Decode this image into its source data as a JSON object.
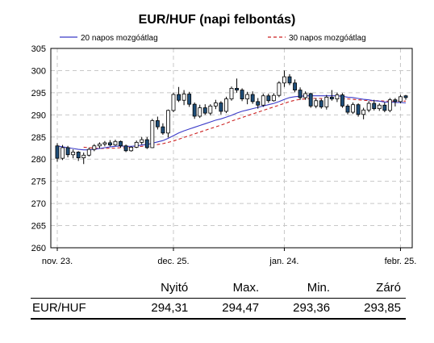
{
  "chart_data": {
    "type": "candlestick",
    "title": "EUR/HUF (napi felbontás)",
    "ylim": [
      260,
      305
    ],
    "yticks": [
      260,
      265,
      270,
      275,
      280,
      285,
      290,
      295,
      300,
      305
    ],
    "xticks": [
      "nov. 23.",
      "dec. 25.",
      "jan. 24.",
      "febr. 25."
    ],
    "xtick_positions": [
      0,
      22,
      43,
      65
    ],
    "grid": true,
    "legend_placement": "top",
    "legend": [
      {
        "name": "20 napos mozgóátlag",
        "color": "#3a3ac8",
        "style": "solid"
      },
      {
        "name": "30 napos mozgóátlag",
        "color": "#cc2222",
        "style": "dashed"
      }
    ],
    "candles": [
      [
        283.0,
        283.6,
        279.4,
        280.2
      ],
      [
        280.2,
        283.2,
        279.8,
        282.6
      ],
      [
        282.6,
        283.0,
        280.4,
        281.0
      ],
      [
        281.0,
        282.2,
        280.2,
        281.6
      ],
      [
        281.6,
        281.8,
        279.6,
        280.3
      ],
      [
        280.3,
        281.5,
        278.9,
        280.9
      ],
      [
        280.9,
        282.6,
        280.6,
        282.2
      ],
      [
        282.2,
        283.4,
        281.8,
        283.0
      ],
      [
        283.0,
        283.8,
        282.4,
        283.4
      ],
      [
        283.4,
        284.1,
        282.9,
        283.7
      ],
      [
        283.7,
        284.3,
        282.9,
        283.2
      ],
      [
        283.2,
        284.4,
        283.0,
        284.0
      ],
      [
        284.0,
        284.2,
        282.6,
        283.0
      ],
      [
        283.0,
        283.3,
        281.6,
        281.9
      ],
      [
        281.9,
        282.9,
        281.7,
        282.7
      ],
      [
        282.7,
        284.2,
        282.5,
        283.8
      ],
      [
        283.8,
        285.0,
        283.3,
        284.4
      ],
      [
        284.4,
        285.0,
        282.3,
        282.6
      ],
      [
        282.6,
        289.1,
        282.5,
        288.7
      ],
      [
        288.7,
        289.6,
        286.7,
        287.3
      ],
      [
        287.3,
        288.1,
        285.5,
        285.9
      ],
      [
        285.9,
        291.2,
        284.9,
        291.0
      ],
      [
        291.0,
        295.0,
        290.6,
        294.6
      ],
      [
        294.6,
        296.3,
        292.9,
        293.3
      ],
      [
        293.3,
        295.6,
        292.2,
        294.7
      ],
      [
        294.7,
        295.2,
        291.8,
        292.4
      ],
      [
        292.4,
        292.8,
        289.1,
        289.7
      ],
      [
        289.7,
        292.3,
        289.3,
        291.6
      ],
      [
        291.6,
        292.4,
        290.0,
        290.4
      ],
      [
        290.4,
        292.4,
        289.9,
        292.0
      ],
      [
        292.0,
        293.4,
        291.3,
        292.7
      ],
      [
        292.7,
        293.1,
        290.1,
        290.8
      ],
      [
        290.8,
        294.1,
        290.4,
        293.6
      ],
      [
        293.6,
        296.4,
        293.2,
        296.0
      ],
      [
        296.0,
        298.2,
        295.0,
        295.6
      ],
      [
        295.6,
        296.0,
        293.1,
        293.6
      ],
      [
        293.6,
        295.2,
        292.4,
        294.6
      ],
      [
        294.6,
        295.3,
        292.5,
        293.0
      ],
      [
        293.0,
        293.8,
        291.4,
        292.2
      ],
      [
        292.2,
        294.8,
        291.8,
        294.3
      ],
      [
        294.3,
        294.8,
        292.7,
        293.2
      ],
      [
        293.2,
        294.9,
        293.0,
        294.4
      ],
      [
        294.4,
        297.6,
        294.0,
        297.2
      ],
      [
        297.2,
        300.0,
        296.3,
        298.6
      ],
      [
        298.6,
        299.2,
        296.7,
        297.2
      ],
      [
        297.2,
        298.0,
        295.1,
        295.6
      ],
      [
        295.6,
        296.2,
        293.4,
        293.9
      ],
      [
        293.9,
        295.3,
        293.4,
        294.8
      ],
      [
        294.8,
        295.0,
        291.6,
        292.0
      ],
      [
        292.0,
        293.7,
        291.5,
        293.2
      ],
      [
        293.2,
        293.6,
        291.4,
        291.8
      ],
      [
        291.8,
        294.5,
        291.2,
        294.0
      ],
      [
        294.0,
        295.6,
        293.2,
        293.6
      ],
      [
        293.6,
        295.0,
        292.9,
        294.5
      ],
      [
        294.5,
        294.9,
        291.6,
        292.0
      ],
      [
        292.0,
        292.4,
        290.1,
        290.6
      ],
      [
        290.6,
        292.8,
        290.2,
        292.3
      ],
      [
        292.3,
        292.6,
        289.6,
        290.1
      ],
      [
        290.1,
        291.6,
        289.0,
        291.1
      ],
      [
        291.1,
        293.1,
        290.6,
        292.6
      ],
      [
        292.6,
        293.4,
        291.0,
        291.4
      ],
      [
        291.4,
        292.6,
        290.9,
        292.2
      ],
      [
        292.2,
        292.8,
        290.6,
        291.0
      ],
      [
        291.0,
        293.8,
        290.6,
        293.4
      ],
      [
        293.4,
        293.8,
        291.9,
        293.0
      ],
      [
        293.0,
        294.5,
        292.6,
        294.1
      ],
      [
        294.3,
        294.5,
        293.4,
        293.9
      ]
    ],
    "ma20": [
      283.0,
      282.8,
      282.6,
      282.4,
      282.2,
      282.1,
      282.1,
      282.2,
      282.4,
      282.6,
      282.8,
      282.9,
      283.0,
      282.9,
      282.9,
      283.0,
      283.2,
      283.3,
      283.6,
      283.9,
      284.2,
      284.7,
      285.3,
      285.9,
      286.4,
      286.8,
      287.2,
      287.6,
      288.0,
      288.4,
      288.8,
      289.1,
      289.5,
      289.9,
      290.4,
      290.8,
      291.1,
      291.4,
      291.7,
      292.0,
      292.3,
      292.6,
      293.0,
      293.5,
      293.9,
      294.1,
      294.2,
      294.3,
      294.3,
      294.3,
      294.3,
      294.3,
      294.3,
      294.3,
      294.2,
      294.0,
      293.9,
      293.7,
      293.5,
      293.4,
      293.2,
      293.1,
      292.9,
      292.9,
      292.8,
      292.8,
      292.7
    ],
    "ma30": [
      null,
      null,
      null,
      null,
      null,
      282.7,
      282.6,
      282.5,
      282.4,
      282.4,
      282.5,
      282.5,
      282.6,
      282.6,
      282.7,
      282.8,
      282.9,
      283.0,
      283.2,
      283.3,
      283.5,
      283.8,
      284.1,
      284.5,
      284.9,
      285.3,
      285.7,
      286.1,
      286.5,
      286.9,
      287.3,
      287.7,
      288.1,
      288.6,
      289.0,
      289.4,
      289.8,
      290.2,
      290.6,
      291.0,
      291.4,
      291.8,
      292.2,
      292.6,
      293.0,
      293.3,
      293.5,
      293.6,
      293.7,
      293.7,
      293.7,
      293.7,
      293.7,
      293.7,
      293.7,
      293.6,
      293.5,
      293.4,
      293.3,
      293.2,
      293.2,
      293.2,
      293.1,
      293.1,
      293.1,
      293.1,
      293.1
    ]
  },
  "table": {
    "headers": [
      "Nyitó",
      "Max.",
      "Min.",
      "Záró"
    ],
    "row_label": "EUR/HUF",
    "values": [
      "294,31",
      "294,47",
      "293,36",
      "293,85"
    ]
  },
  "colors": {
    "up_fill": "#ffffff",
    "down_fill": "#1f4e79",
    "candle_stroke": "#000000",
    "grid": "#c8c8c8",
    "frame": "#000000"
  }
}
